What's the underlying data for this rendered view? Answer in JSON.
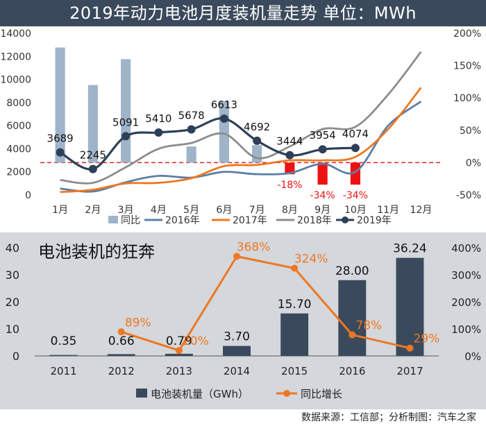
{
  "page": {
    "title": "2019年动力电池月度装机量走势  单位：MWh",
    "source": "数据来源：工信部；分析制图：汽车之家"
  },
  "colors": {
    "title_bg": "#3a4a5c",
    "bar_yoy": "#9fb4c9",
    "bar_negative": "#ee1111",
    "line_2016": "#5b7fa6",
    "line_2017": "#ee7722",
    "line_2018": "#8c8c8c",
    "line_2019": "#2e4057",
    "zero_ref": "#dd2222",
    "panel2_bg": "#d4d7dc",
    "bar_install": "#3a4a5c",
    "line_growth": "#ee7722"
  },
  "chart_data": [
    {
      "type": "bar+line",
      "title": "2019年动力电池月度装机量走势  单位：MWh",
      "categories": [
        "1月",
        "2月",
        "3月",
        "4月",
        "5月",
        "6月",
        "7月",
        "8月",
        "9月",
        "10月",
        "11月",
        "12月"
      ],
      "ylim": [
        0,
        14000
      ],
      "yticks": [
        "0",
        "2000",
        "4000",
        "6000",
        "8000",
        "10000",
        "12000",
        "14000"
      ],
      "y2lim": [
        -50,
        200
      ],
      "y2ticks": [
        "-50%",
        "0%",
        "50%",
        "100%",
        "150%",
        "200%"
      ],
      "grid": false,
      "legend": "bottom",
      "yoy": {
        "name": "同比",
        "values": [
          178,
          120,
          160,
          null,
          25,
          95,
          27,
          -18,
          -34,
          -34,
          null,
          null
        ],
        "shown_labels": [
          "",
          "",
          "",
          "",
          "",
          "",
          "",
          "-18%",
          "-34%",
          "-34%",
          "",
          ""
        ]
      },
      "series": [
        {
          "name": "2016年",
          "values": [
            550,
            300,
            1100,
            1650,
            1500,
            2000,
            1800,
            1900,
            2700,
            2000,
            6000,
            8100
          ]
        },
        {
          "name": "2017年",
          "values": [
            250,
            450,
            1000,
            1050,
            1450,
            2500,
            2600,
            3000,
            3000,
            3300,
            5700,
            9300
          ]
        },
        {
          "name": "2018年",
          "values": [
            1300,
            1050,
            2400,
            4000,
            4500,
            5300,
            3200,
            4200,
            5700,
            5900,
            8700,
            12400
          ]
        },
        {
          "name": "2019年",
          "values": [
            3689,
            2245,
            5091,
            5410,
            5678,
            6613,
            4692,
            3444,
            3954,
            4074,
            null,
            null
          ],
          "labels": [
            "3689",
            "2245",
            "5091",
            "5410",
            "5678",
            "6613",
            "4692",
            "3444",
            "3954",
            "4074",
            "",
            ""
          ]
        }
      ]
    },
    {
      "type": "bar+line",
      "title": "电池装机的狂奔",
      "categories": [
        "2011",
        "2012",
        "2013",
        "2014",
        "2015",
        "2016",
        "2017"
      ],
      "ylim": [
        0,
        40
      ],
      "yticks": [
        "0",
        "10",
        "20",
        "30",
        "40"
      ],
      "y2lim": [
        0,
        400
      ],
      "y2ticks": [
        "0%",
        "100%",
        "200%",
        "300%",
        "400%"
      ],
      "grid": false,
      "legend": "bottom",
      "series": [
        {
          "name": "电池装机量（GWh）",
          "kind": "bar",
          "values": [
            0.35,
            0.66,
            0.79,
            3.7,
            15.7,
            28.0,
            36.24
          ],
          "labels": [
            "0.35",
            "0.66",
            "0.79",
            "3.70",
            "15.70",
            "28.00",
            "36.24"
          ]
        },
        {
          "name": "同比增长",
          "kind": "line",
          "values": [
            null,
            89,
            20,
            368,
            324,
            78,
            29
          ],
          "labels": [
            "",
            "89%",
            "20%",
            "368%",
            "324%",
            "78%",
            "29%"
          ]
        }
      ]
    }
  ]
}
